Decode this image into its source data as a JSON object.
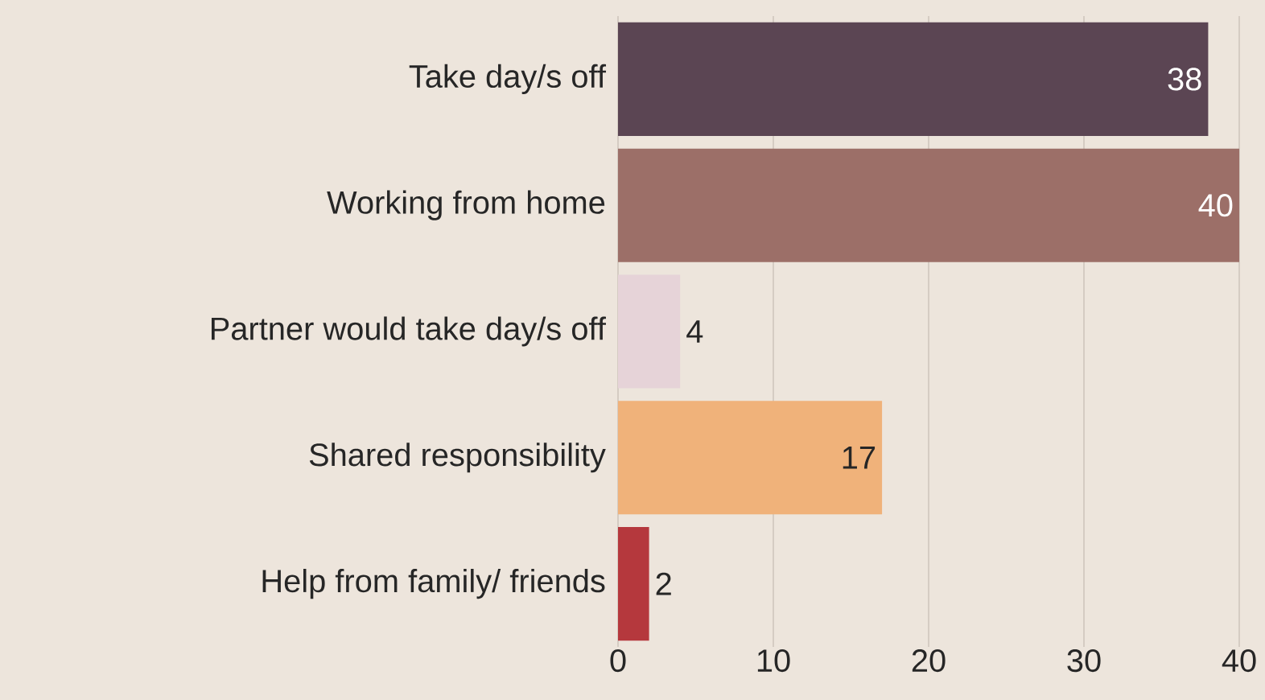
{
  "chart_data": {
    "type": "bar",
    "orientation": "horizontal",
    "categories": [
      "Take day/s off",
      "Working from home",
      "Partner would take day/s off",
      "Shared responsibility",
      "Help from family/ friends"
    ],
    "values": [
      38,
      40,
      4,
      17,
      2
    ],
    "colors": [
      "#5b4553",
      "#9c6f68",
      "#e6d3d8",
      "#f0b27a",
      "#b5383d"
    ],
    "xlim": [
      0,
      40
    ],
    "xticks": [
      0,
      10,
      20,
      30,
      40
    ],
    "grid": "x",
    "data_labels": true
  }
}
